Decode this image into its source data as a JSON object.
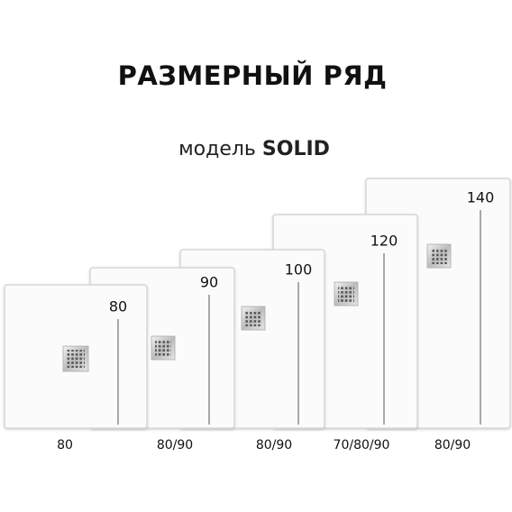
{
  "title": "РАЗМЕРНЫЙ РЯД",
  "subtitle": {
    "prefix": "модель",
    "model": "SOLID"
  },
  "trays": [
    {
      "length": "80",
      "width": "80"
    },
    {
      "length": "90",
      "width": "80/90"
    },
    {
      "length": "100",
      "width": "80/90"
    },
    {
      "length": "120",
      "width": "70/80/90"
    },
    {
      "length": "140",
      "width": "80/90"
    }
  ]
}
